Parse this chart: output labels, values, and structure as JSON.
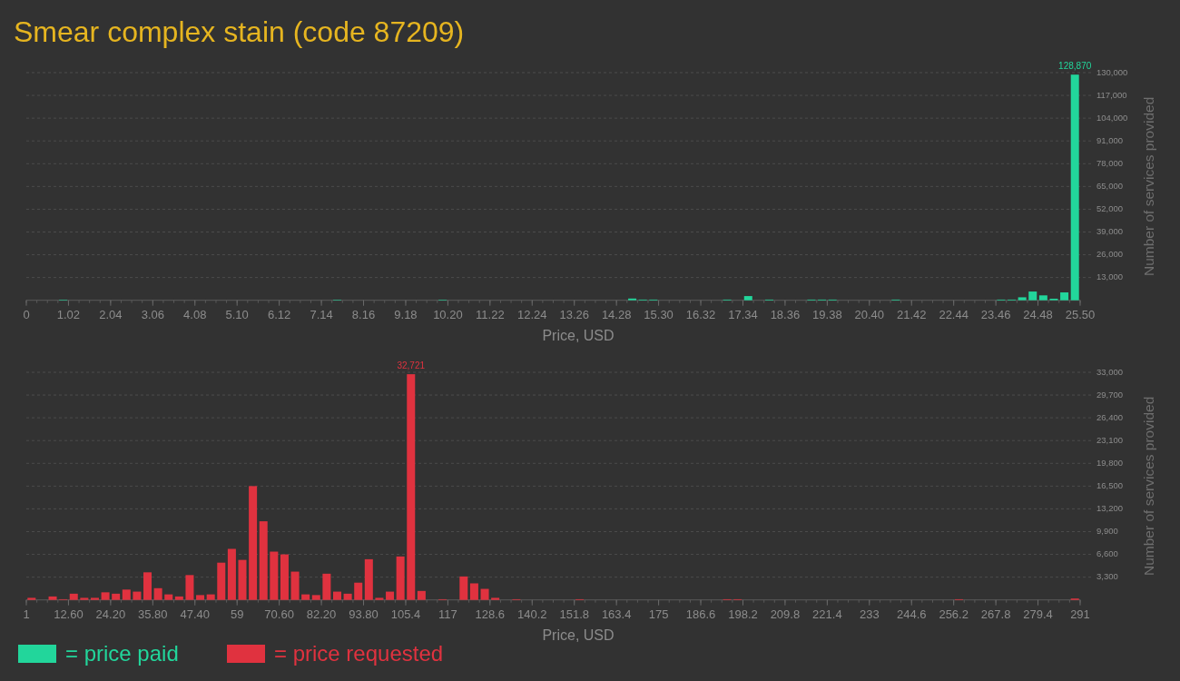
{
  "chart_data": [
    {
      "type": "histogram",
      "title": "Smear complex stain (code 87209)",
      "xlabel": "Price, USD",
      "ylabel": "Number of services provided",
      "bins": [
        0,
        0.255,
        0.51,
        0.765,
        1.02,
        1.275,
        1.53,
        1.785,
        2.04,
        2.295,
        2.55,
        2.805,
        3.06,
        3.315,
        3.57,
        3.825,
        4.08,
        4.335,
        4.59,
        4.845,
        5.1,
        5.355,
        5.61,
        5.865,
        6.12,
        6.375,
        6.63,
        6.885,
        7.14,
        7.395,
        7.65,
        7.905,
        8.16,
        8.415,
        8.67,
        8.925,
        9.18,
        9.435,
        9.69,
        9.945,
        10.2,
        10.455,
        10.71,
        10.965,
        11.22,
        11.475,
        11.73,
        11.985,
        12.24,
        12.495,
        12.75,
        13.005,
        13.26,
        13.515,
        13.77,
        14.025,
        14.28,
        14.535,
        14.79,
        15.045,
        15.3,
        15.555,
        15.81,
        16.065,
        16.32,
        16.575,
        16.83,
        17.085,
        17.34,
        17.595,
        17.85,
        18.105,
        18.36,
        18.615,
        18.87,
        19.125,
        19.38,
        19.635,
        19.89,
        20.145,
        20.4,
        20.655,
        20.91,
        21.165,
        21.42,
        21.675,
        21.93,
        22.185,
        22.44,
        22.695,
        22.95,
        23.205,
        23.46,
        23.715,
        23.97,
        24.225,
        24.48,
        24.735,
        24.99,
        25.245,
        25.5
      ],
      "series": [
        {
          "name": "= price paid",
          "color": "#22d69b",
          "values": [
            0,
            0,
            0,
            300,
            0,
            0,
            0,
            0,
            0,
            0,
            0,
            0,
            0,
            0,
            0,
            0,
            0,
            0,
            0,
            0,
            0,
            0,
            0,
            0,
            0,
            0,
            0,
            0,
            0,
            300,
            0,
            0,
            0,
            0,
            0,
            0,
            0,
            0,
            0,
            300,
            0,
            0,
            0,
            0,
            0,
            0,
            0,
            0,
            0,
            0,
            0,
            0,
            0,
            0,
            0,
            0,
            0,
            1000,
            400,
            400,
            0,
            0,
            0,
            0,
            0,
            0,
            400,
            0,
            2400,
            0,
            400,
            0,
            0,
            0,
            400,
            400,
            400,
            0,
            0,
            0,
            0,
            0,
            400,
            0,
            0,
            0,
            0,
            0,
            0,
            0,
            0,
            0,
            400,
            400,
            1700,
            5000,
            2800,
            900,
            4500,
            128870
          ],
          "value_labels": [
            null,
            null,
            null,
            null,
            null,
            null,
            null,
            null,
            null,
            null,
            null,
            null,
            null,
            null,
            null,
            null,
            null,
            null,
            null,
            null,
            null,
            null,
            null,
            null,
            null,
            null,
            null,
            null,
            null,
            null,
            null,
            null,
            null,
            null,
            null,
            null,
            null,
            null,
            null,
            null,
            null,
            null,
            null,
            null,
            null,
            null,
            null,
            null,
            null,
            null,
            null,
            null,
            null,
            null,
            null,
            null,
            null,
            null,
            null,
            null,
            null,
            null,
            null,
            null,
            null,
            null,
            null,
            null,
            null,
            null,
            null,
            null,
            null,
            null,
            null,
            null,
            null,
            null,
            null,
            null,
            null,
            null,
            null,
            null,
            null,
            null,
            null,
            null,
            null,
            null,
            null,
            null,
            null,
            null,
            null,
            null,
            null,
            null,
            null,
            "128,870"
          ]
        }
      ],
      "xlim": [
        0,
        25.5
      ],
      "xticks": [
        0,
        1.02,
        2.04,
        3.06,
        4.08,
        {
          "value": 5.1,
          "label": "5.10"
        },
        6.12,
        7.14,
        8.16,
        9.18,
        {
          "value": 10.2,
          "label": "10.20"
        },
        11.22,
        12.24,
        13.26,
        14.28,
        {
          "value": 15.3,
          "label": "15.30"
        },
        16.32,
        17.34,
        18.36,
        19.38,
        {
          "value": 20.4,
          "label": "20.40"
        },
        21.42,
        22.44,
        23.46,
        24.48,
        {
          "value": 25.5,
          "label": "25.50"
        }
      ],
      "ylim": [
        0,
        130000
      ],
      "yticks": [
        {
          "value": 13000,
          "label": "13,000"
        },
        {
          "value": 26000,
          "label": "26,000"
        },
        {
          "value": 39000,
          "label": "39,000"
        },
        {
          "value": 52000,
          "label": "52,000"
        },
        {
          "value": 65000,
          "label": "65,000"
        },
        {
          "value": 78000,
          "label": "78,000"
        },
        {
          "value": 91000,
          "label": "91,000"
        },
        {
          "value": 104000,
          "label": "104,000"
        },
        {
          "value": 117000,
          "label": "117,000"
        },
        {
          "value": 130000,
          "label": "130,000"
        }
      ],
      "grid": "y",
      "legend": "bottom left"
    },
    {
      "type": "histogram",
      "xlabel": "Price, USD",
      "ylabel": "Number of services provided",
      "bins": [
        1,
        3.9,
        6.8,
        9.7,
        12.6,
        15.5,
        18.4,
        21.3,
        24.2,
        27.1,
        30,
        32.9,
        35.8,
        38.7,
        41.6,
        44.5,
        47.4,
        50.3,
        53.2,
        56.1,
        59,
        61.9,
        64.8,
        67.7,
        70.6,
        73.5,
        76.4,
        79.3,
        82.2,
        85.1,
        88,
        90.9,
        93.8,
        96.7,
        99.6,
        102.5,
        105.4,
        108.3,
        111.2,
        114.1,
        117,
        119.9,
        122.8,
        125.7,
        128.6,
        131.5,
        134.4,
        137.3,
        140.2,
        143.1,
        146,
        148.9,
        151.8,
        154.7,
        157.6,
        160.5,
        163.4,
        166.3,
        169.2,
        172.1,
        175,
        177.9,
        180.8,
        183.7,
        186.6,
        189.5,
        192.4,
        195.3,
        198.2,
        201.1,
        204,
        206.9,
        209.8,
        212.7,
        215.6,
        218.5,
        221.4,
        224.3,
        227.2,
        230.1,
        233,
        235.9,
        238.8,
        241.7,
        244.6,
        247.5,
        250.4,
        253.3,
        256.2,
        259.1,
        262,
        264.9,
        267.8,
        270.7,
        273.6,
        276.5,
        279.4,
        282.3,
        285.2,
        288.1,
        291
      ],
      "series": [
        {
          "name": "= price requested",
          "color": "#e0323f",
          "values": [
            300,
            0,
            500,
            100,
            900,
            300,
            300,
            1100,
            900,
            1500,
            1200,
            4000,
            1700,
            800,
            500,
            3600,
            700,
            800,
            5400,
            7400,
            5800,
            16500,
            11400,
            7000,
            6600,
            4100,
            800,
            700,
            3800,
            1200,
            900,
            2500,
            5900,
            300,
            1200,
            6300,
            32721,
            1300,
            0,
            100,
            0,
            3400,
            2400,
            1600,
            300,
            0,
            100,
            0,
            0,
            0,
            0,
            0,
            100,
            0,
            0,
            0,
            0,
            0,
            0,
            0,
            0,
            0,
            0,
            0,
            0,
            0,
            100,
            100,
            0,
            0,
            0,
            0,
            0,
            0,
            0,
            0,
            0,
            0,
            0,
            0,
            0,
            0,
            0,
            0,
            0,
            0,
            0,
            0,
            100,
            0,
            0,
            0,
            0,
            0,
            0,
            0,
            0,
            0,
            0,
            200
          ],
          "value_labels": [
            null,
            null,
            null,
            null,
            null,
            null,
            null,
            null,
            null,
            null,
            null,
            null,
            null,
            null,
            null,
            null,
            null,
            null,
            null,
            null,
            null,
            null,
            null,
            null,
            null,
            null,
            null,
            null,
            null,
            null,
            null,
            null,
            null,
            null,
            null,
            null,
            "32,721",
            null,
            null,
            null,
            null,
            null,
            null,
            null,
            null,
            null,
            null,
            null,
            null,
            null,
            null,
            null,
            null,
            null,
            null,
            null,
            null,
            null,
            null,
            null,
            null,
            null,
            null,
            null,
            null,
            null,
            null,
            null,
            null,
            null,
            null,
            null,
            null,
            null,
            null,
            null,
            null,
            null,
            null,
            null,
            null,
            null,
            null,
            null,
            null,
            null,
            null,
            null,
            null,
            null,
            null,
            null,
            null,
            null,
            null,
            null,
            null,
            null,
            null,
            null
          ]
        }
      ],
      "xlim": [
        1,
        291
      ],
      "xticks": [
        1,
        {
          "value": 12.6,
          "label": "12.60"
        },
        {
          "value": 24.2,
          "label": "24.20"
        },
        {
          "value": 35.8,
          "label": "35.80"
        },
        {
          "value": 47.4,
          "label": "47.40"
        },
        59,
        {
          "value": 70.6,
          "label": "70.60"
        },
        {
          "value": 82.2,
          "label": "82.20"
        },
        {
          "value": 93.8,
          "label": "93.80"
        },
        105.4,
        117,
        128.6,
        140.2,
        151.8,
        163.4,
        175,
        186.6,
        198.2,
        209.8,
        221.4,
        233,
        244.6,
        256.2,
        267.8,
        279.4,
        291
      ],
      "ylim": [
        0,
        33000
      ],
      "yticks": [
        {
          "value": 3300,
          "label": "3,300"
        },
        {
          "value": 6600,
          "label": "6,600"
        },
        {
          "value": 9900,
          "label": "9,900"
        },
        {
          "value": 13200,
          "label": "13,200"
        },
        {
          "value": 16500,
          "label": "16,500"
        },
        {
          "value": 19800,
          "label": "19,800"
        },
        {
          "value": 23100,
          "label": "23,100"
        },
        {
          "value": 26400,
          "label": "26,400"
        },
        {
          "value": 29700,
          "label": "29,700"
        },
        {
          "value": 33000,
          "label": "33,000"
        }
      ],
      "grid": "y",
      "legend": "bottom left"
    }
  ]
}
